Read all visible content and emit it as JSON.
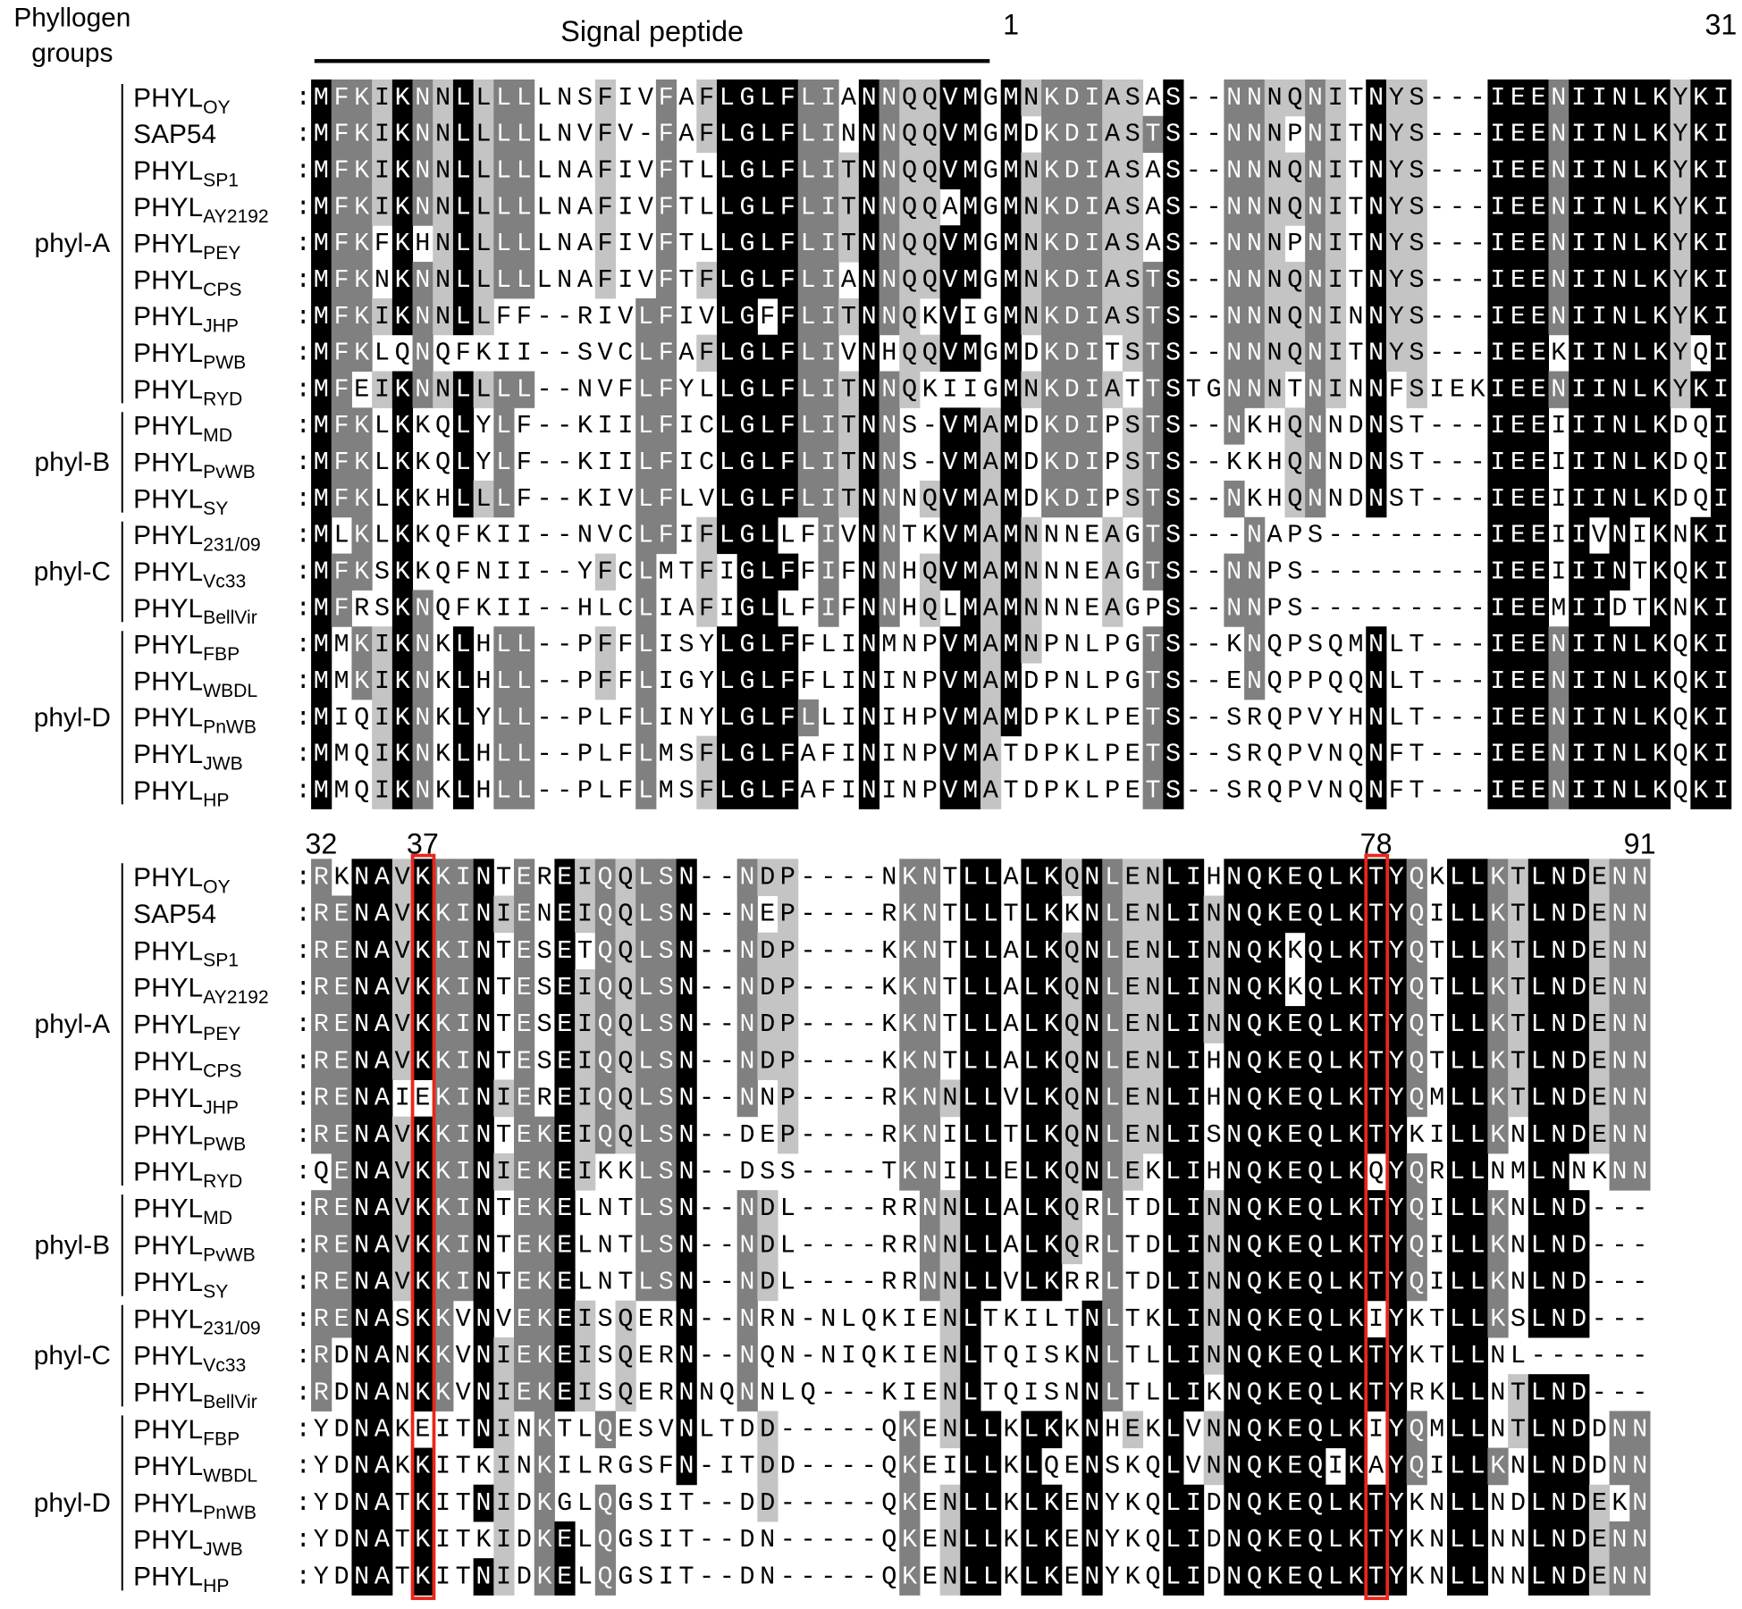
{
  "header": {
    "groups_title": [
      "Phyllogen",
      "groups"
    ],
    "signal_peptide": "Signal peptide",
    "separator": ":"
  },
  "blocks": [
    {
      "start": 1,
      "end": 31,
      "highlight": []
    },
    {
      "start": 32,
      "end": 91,
      "highlight": [
        37,
        78
      ]
    }
  ],
  "groups": [
    {
      "label": "phyl-A",
      "members": [
        {
          "name": "PHYL",
          "sub": "OY",
          "sequences": [
            "MFKIKNNLLLLLNSFIVFAFLGLFLIANNQQVMGMNKDIASAS--NNNQNITNYS---IEENIINLKYKI",
            "RKNAVKKINTEREIQQLSN--NDP----NKNTLLALKQNLENLIHNQKEQLKTYQKLLKTLNDENN"
          ]
        },
        {
          "name": "SAP54",
          "sequences": [
            "MFKIKNNLLLLLNVFV-FAFLGLFLINNNQQVMGMDKDIASTS--NNNPNITNYS---IEENIINLKYKI",
            "RENAVKKINIENEIQQLSN--NEP----RKNTLLTLKKNLENLINNQKEQLKTYQILLKTLNDENN"
          ]
        },
        {
          "name": "PHYL",
          "sub": "SP1",
          "sequences": [
            "MFKIKNNLLLLLNAFIVFTLLGLFLITNNQQVMGMNKDIASAS--NNNQNITNYS---IEENIINLKYKI",
            "RENAVKKINTESETQQLSN--NDP----KKNTLLALKQNLENLINNQKKQLKTYQTLLKTLNDENN"
          ]
        },
        {
          "name": "PHYL",
          "sub": "AY2192",
          "sequences": [
            "MFKIKNNLLLLLNAFIVFTLLGLFLITNNQQAMGMNKDIASAS--NNNQNITNYS---IEENIINLKYKI",
            "RENAVKKINTESEIQQLSN--NDP----KKNTLLALKQNLENLINNQKKQLKTYQTLLKTLNDENN"
          ]
        },
        {
          "name": "PHYL",
          "sub": "PEY",
          "sequences": [
            "MFKFKHNLLLLLNAFIVFTLLGLFLITNNQQVMGMNKDIASAS--NNNPNITNYS---IEENIINLKYKI",
            "RENAVKKINTESEIQQLSN--NDP----KKNTLLALKQNLENLINNQKEQLKTYQTLLKTLNDENN"
          ]
        },
        {
          "name": "PHYL",
          "sub": "CPS",
          "sequences": [
            "MFKNKNNLLLLLNAFIVFTFLGLFLIANNQQVMGMNKDIASTS--NNNQNITNYS---IEENIINLKYKI",
            "RENAVKKINTESEIQQLSN--NDP----KKNTLLALKQNLENLIHNQKEQLKTYQTLLKTLNDENN"
          ]
        },
        {
          "name": "PHYL",
          "sub": "JHP",
          "sequences": [
            "MFKIKNNLLFF--RIVLFIVLGFFLITNNQKVIGMNKDIASTS--NNNQNINNYS---IEENIINLKYKI",
            "RENAIEKINIEREIQQLSN--NNP----RKNNLLVLKQNLENLIHNQKEQLKTYQMLLKTLNDENN"
          ]
        },
        {
          "name": "PHYL",
          "sub": "PWB",
          "sequences": [
            "MFKLQNQFKII--SVCLFAFLGLFLIVNHQQVMGMDKDITSTS--NNNQNITNYS---IEEKIINLKYQI",
            "RENAVKKINTEKEIQQLSN--DEP----RKNILLTLKQNLENLISNQKEQLKTYKILLKNLNDENN"
          ]
        },
        {
          "name": "PHYL",
          "sub": "RYD",
          "sequences": [
            "MFEIKNNLLLL--NVFLFYLLGLFLITNNQKIIGMNKDIATTSTGNNNTNINNFSIEKIEENIINLKYKI",
            "QENAVKKINIEKEIKKLSN--DSS----TKNILLELKQNLEKLIHNQKEQLKQYQRLLNMLNNKNN"
          ]
        }
      ]
    },
    {
      "label": "phyl-B",
      "members": [
        {
          "name": "PHYL",
          "sub": "MD",
          "sequences": [
            "MFKLKKQLYLF--KIILFICLGLFLITNNS-VMAMDKDIPSTS--NKHQNNDNST---IEEIIINLKDQI",
            "RENAVKKINTEKELNTLSN--NDL----RRNNLLALKQRLTDLINNQKEQLKTYQILLKNLND---"
          ]
        },
        {
          "name": "PHYL",
          "sub": "PvWB",
          "sequences": [
            "MFKLKKQLYLF--KIILFICLGLFLITNNS-VMAMDKDIPSTS--KKHQNNDNST---IEEIIINLKDQI",
            "RENAVKKINTEKELNTLSN--NDL----RRNNLLALKQRLTDLINNQKEQLKTYQILLKNLND---"
          ]
        },
        {
          "name": "PHYL",
          "sub": "SY",
          "sequences": [
            "MFKLKKHLLLF--KIVLFLVLGLFLITNNNQVMAMDKDIPSTS--NKHQNNDNST---IEEIIINLKDQI",
            "RENAVKKINTEKELNTLSN--NDL----RRNNLLVLKRRLTDLINNQKEQLKTYQILLKNLND---"
          ]
        }
      ]
    },
    {
      "label": "phyl-C",
      "members": [
        {
          "name": "PHYL",
          "sub": "231/09",
          "sequences": [
            "MLKLKKQFKII--NVCLFIFLGLLFIVNNTKVMAMNNNEAGTS---NAPS--------IEEIIVNIKNKI",
            "RENASKKVNVEKEISQERN--NRN-NLQKIENLTKILTNLTKLINNQKEQLKIYKTLLKSLND---"
          ]
        },
        {
          "name": "PHYL",
          "sub": "Vc33",
          "sequences": [
            "MFKSKKQFNII--YFCLMTFIGLFFIFNNHQVMAMNNNEAGTS--NNPS---------IEEIIINTKQKI",
            "RDNANKKVNIEKEISQERN--NQN-NIQKIENLTQISKNLTLLINNQKEQLKTYKTLLNL------"
          ]
        },
        {
          "name": "PHYL",
          "sub": "BellVir",
          "sequences": [
            "MFRSKNQFKII--HLCLIAFIGLLFIFNNHQLMAMNNNEAGPS--NNPS---------IEEMIIDTKNKI",
            "RDNANKKVNIEKEISQERNNQNNLQ---KIENLTQISNNLTLLIKNQKEQLKTYRKLLNTLND---"
          ]
        }
      ]
    },
    {
      "label": "phyl-D",
      "members": [
        {
          "name": "PHYL",
          "sub": "FBP",
          "sequences": [
            "MMKIKNKLHLL--PFFLISYLGLFFLINMNPVMAMNPNLPGTS--KNQPSQMNLT---IEENIINLKQKI",
            "YDNAKEITNINKTLQESVNLTDD-----QKENLLKLKKNHEKLVNNQKEQLKIYQMLLNTLNDDNN"
          ]
        },
        {
          "name": "PHYL",
          "sub": "WBDL",
          "sequences": [
            "MMKIKNKLHLL--PFFLIGYLGLFFLININPVMAMDPNLPGTS--ENQPPQQNLT---IEENIINLKQKI",
            "YDNAKKITKINKILRGSFN-ITDD----QKEILLKLQENSKQLVNNQKEQIKAYQILLKNLNDDNN"
          ]
        },
        {
          "name": "PHYL",
          "sub": "PnWB",
          "sequences": [
            "MIQIKNKLYLL--PLFLINYLGLFLLINIHPVMAMDPKLPETS--SRQPVYHNLT---IEENIINLKQKI",
            "YDNATKITNIDKGLQGSIT--DD-----QKENLLKLKENYKQLIDNQKEQLKTYKNLLNDLNDEKN"
          ]
        },
        {
          "name": "PHYL",
          "sub": "JWB",
          "sequences": [
            "MMQIKNKLHLL--PLFLMSFLGLFAFININPVMATDPKLPETS--SRQPVNQNFT---IEENIINLKQKI",
            "YDNATKITKIDKELQGSIT--DN-----QKENLLKLKENYKQLIDNQKEQLKTYKNLLNNLNDENN"
          ]
        },
        {
          "name": "PHYL",
          "sub": "HP",
          "sequences": [
            "MMQIKNKLHLL--PLFLMSFLGLFAFININPVMATDPKLPETS--SRQPVNQNFT---IEENIINLKQKI",
            "YDNATKITNIDKELQGSIT--DN-----QKENLLKLKENYKQLIDNQKEQLKTYKNLLNNLNDENN"
          ]
        }
      ]
    }
  ]
}
